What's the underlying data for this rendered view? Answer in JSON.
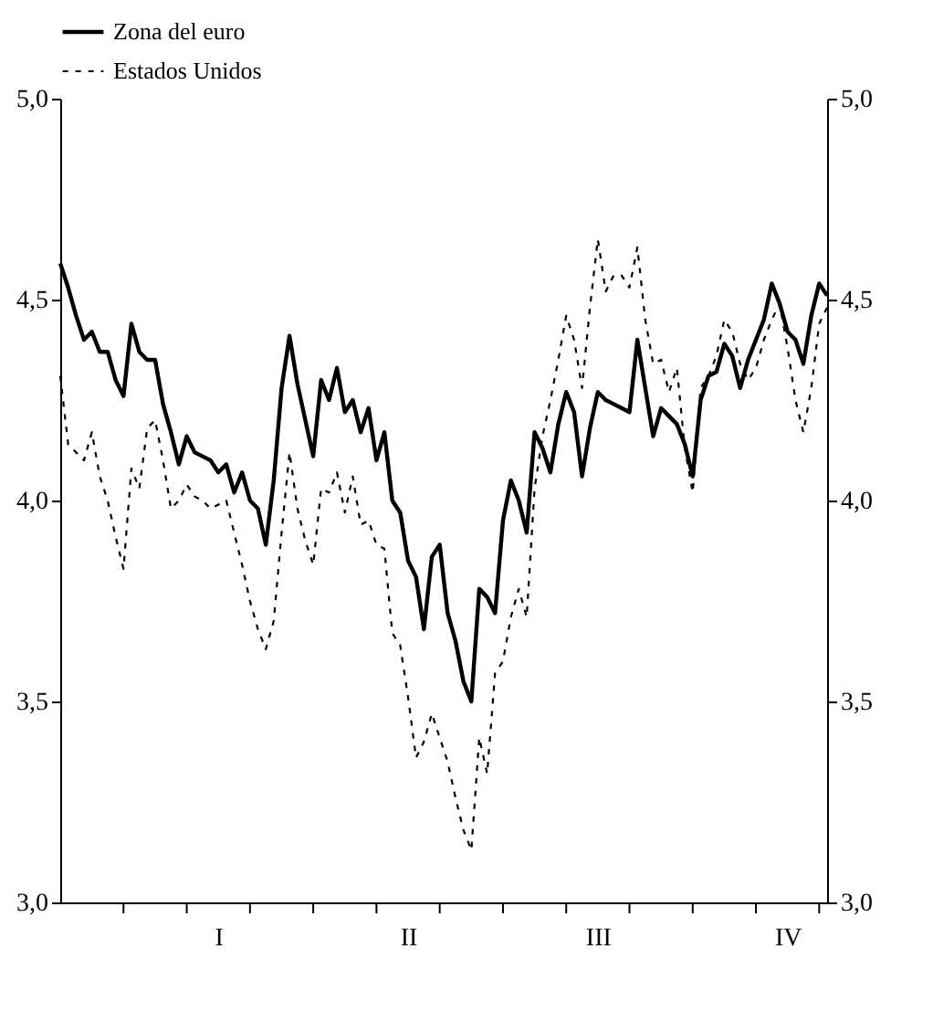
{
  "chart_data": {
    "type": "line",
    "categories": [
      null,
      null,
      null,
      null,
      null,
      null,
      null,
      null,
      null,
      null,
      null,
      null,
      null,
      null,
      null,
      null,
      null,
      null,
      null,
      null,
      "I",
      null,
      null,
      null,
      null,
      null,
      null,
      null,
      null,
      null,
      null,
      null,
      null,
      null,
      null,
      null,
      null,
      null,
      null,
      null,
      null,
      null,
      null,
      null,
      "II",
      null,
      null,
      null,
      null,
      null,
      null,
      null,
      null,
      null,
      null,
      null,
      null,
      null,
      null,
      null,
      null,
      null,
      null,
      null,
      null,
      null,
      null,
      null,
      "III",
      null,
      null,
      null,
      null,
      null,
      null,
      null,
      null,
      null,
      null,
      null,
      null,
      null,
      null,
      null,
      null,
      null,
      null,
      null,
      null,
      null,
      null,
      null,
      "IV",
      null,
      null,
      null,
      null,
      null
    ],
    "series": [
      {
        "name": "Zona del euro",
        "color": "#000000",
        "line_style": "solid",
        "values": [
          4.59,
          4.53,
          4.46,
          4.4,
          4.42,
          4.37,
          4.37,
          4.3,
          4.26,
          4.44,
          4.37,
          4.35,
          4.35,
          4.24,
          4.17,
          4.09,
          4.16,
          4.12,
          4.11,
          4.1,
          4.07,
          4.09,
          4.02,
          4.07,
          4.0,
          3.98,
          3.89,
          4.05,
          4.28,
          4.41,
          4.29,
          4.2,
          4.11,
          4.3,
          4.25,
          4.33,
          4.22,
          4.25,
          4.17,
          4.23,
          4.1,
          4.17,
          4.0,
          3.97,
          3.85,
          3.81,
          3.68,
          3.86,
          3.89,
          3.72,
          3.65,
          3.55,
          3.5,
          3.78,
          3.76,
          3.72,
          3.95,
          4.05,
          4.0,
          3.92,
          4.17,
          4.13,
          4.07,
          4.19,
          4.27,
          4.22,
          4.06,
          4.18,
          4.27,
          4.25,
          4.24,
          4.23,
          4.22,
          4.4,
          4.28,
          4.16,
          4.23,
          4.21,
          4.19,
          4.14,
          4.06,
          4.25,
          4.31,
          4.32,
          4.39,
          4.36,
          4.28,
          4.35,
          4.4,
          4.45,
          4.54,
          4.49,
          4.42,
          4.4,
          4.34,
          4.46,
          4.54,
          4.51
        ]
      },
      {
        "name": "Estados Unidos",
        "color": "#000000",
        "line_style": "dashed",
        "values": [
          4.31,
          4.14,
          4.12,
          4.1,
          4.17,
          4.06,
          4.0,
          3.91,
          3.83,
          4.08,
          4.03,
          4.18,
          4.2,
          4.1,
          3.98,
          4.0,
          4.04,
          4.01,
          4.0,
          3.98,
          3.99,
          4.0,
          3.92,
          3.84,
          3.75,
          3.68,
          3.63,
          3.7,
          3.92,
          4.12,
          3.98,
          3.9,
          3.84,
          4.03,
          4.02,
          4.07,
          3.97,
          4.06,
          3.94,
          3.95,
          3.89,
          3.88,
          3.67,
          3.64,
          3.51,
          3.36,
          3.4,
          3.47,
          3.41,
          3.35,
          3.26,
          3.18,
          3.13,
          3.41,
          3.32,
          3.57,
          3.6,
          3.71,
          3.78,
          3.71,
          4.03,
          4.16,
          4.25,
          4.35,
          4.46,
          4.4,
          4.28,
          4.48,
          4.65,
          4.52,
          4.56,
          4.56,
          4.53,
          4.63,
          4.45,
          4.34,
          4.35,
          4.27,
          4.33,
          4.13,
          4.02,
          4.28,
          4.31,
          4.36,
          4.45,
          4.42,
          4.34,
          4.3,
          4.33,
          4.4,
          4.45,
          4.49,
          4.38,
          4.25,
          4.17,
          4.28,
          4.44,
          4.48
        ]
      }
    ],
    "ylim": [
      3.0,
      5.0
    ],
    "yticks": [
      {
        "value": 3.0,
        "label": "3,0"
      },
      {
        "value": 3.5,
        "label": "3,5"
      },
      {
        "value": 4.0,
        "label": "4,0"
      },
      {
        "value": 4.5,
        "label": "4,5"
      },
      {
        "value": 5.0,
        "label": "5,0"
      }
    ],
    "y2lim": [
      3.0,
      5.0
    ],
    "y2ticks": [
      {
        "value": 3.0,
        "label": "3,0"
      },
      {
        "value": 3.5,
        "label": "3,5"
      },
      {
        "value": 4.0,
        "label": "4,0"
      },
      {
        "value": 4.5,
        "label": "4,5"
      },
      {
        "value": 5.0,
        "label": "5,0"
      }
    ],
    "grid": false,
    "legend": "top left",
    "marker": "none"
  }
}
